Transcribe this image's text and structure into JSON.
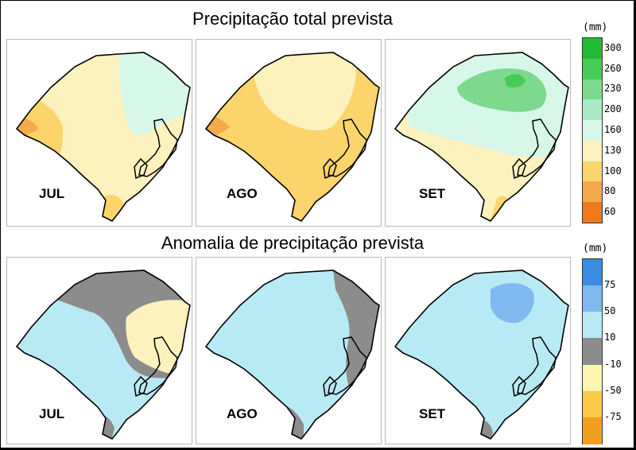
{
  "titles": {
    "top": "Precipitação total prevista",
    "bottom": "Anomalia de precipitação prevista"
  },
  "months": [
    "JUL",
    "AGO",
    "SET"
  ],
  "legend_top": {
    "unit": "(mm)",
    "labels": [
      "300",
      "260",
      "230",
      "200",
      "160",
      "130",
      "100",
      "80",
      "60"
    ],
    "colors": [
      "#22bb33",
      "#45cc55",
      "#7dd98d",
      "#a8ebc4",
      "#d7f8e9",
      "#fdf1be",
      "#fbd56c",
      "#f6a94a",
      "#f07a1b"
    ]
  },
  "legend_bottom": {
    "unit": "(mm)",
    "labels": [
      "75",
      "50",
      "10",
      "-10",
      "-50",
      "-75"
    ],
    "colors": [
      "#3a8de0",
      "#7fb9f0",
      "#b8eaf6",
      "#8c8c8c",
      "#fef5b0",
      "#fbc848",
      "#f3a020"
    ]
  },
  "fill_colors": {
    "pale_yellow": "#fdf1be",
    "yellow": "#fbd56c",
    "orange": "#f6a94a",
    "mint": "#d7f8e9",
    "green": "#7dd98d",
    "light_blue": "#b8eaf6",
    "mid_blue": "#7fb9f0",
    "gray": "#8c8c8c"
  }
}
